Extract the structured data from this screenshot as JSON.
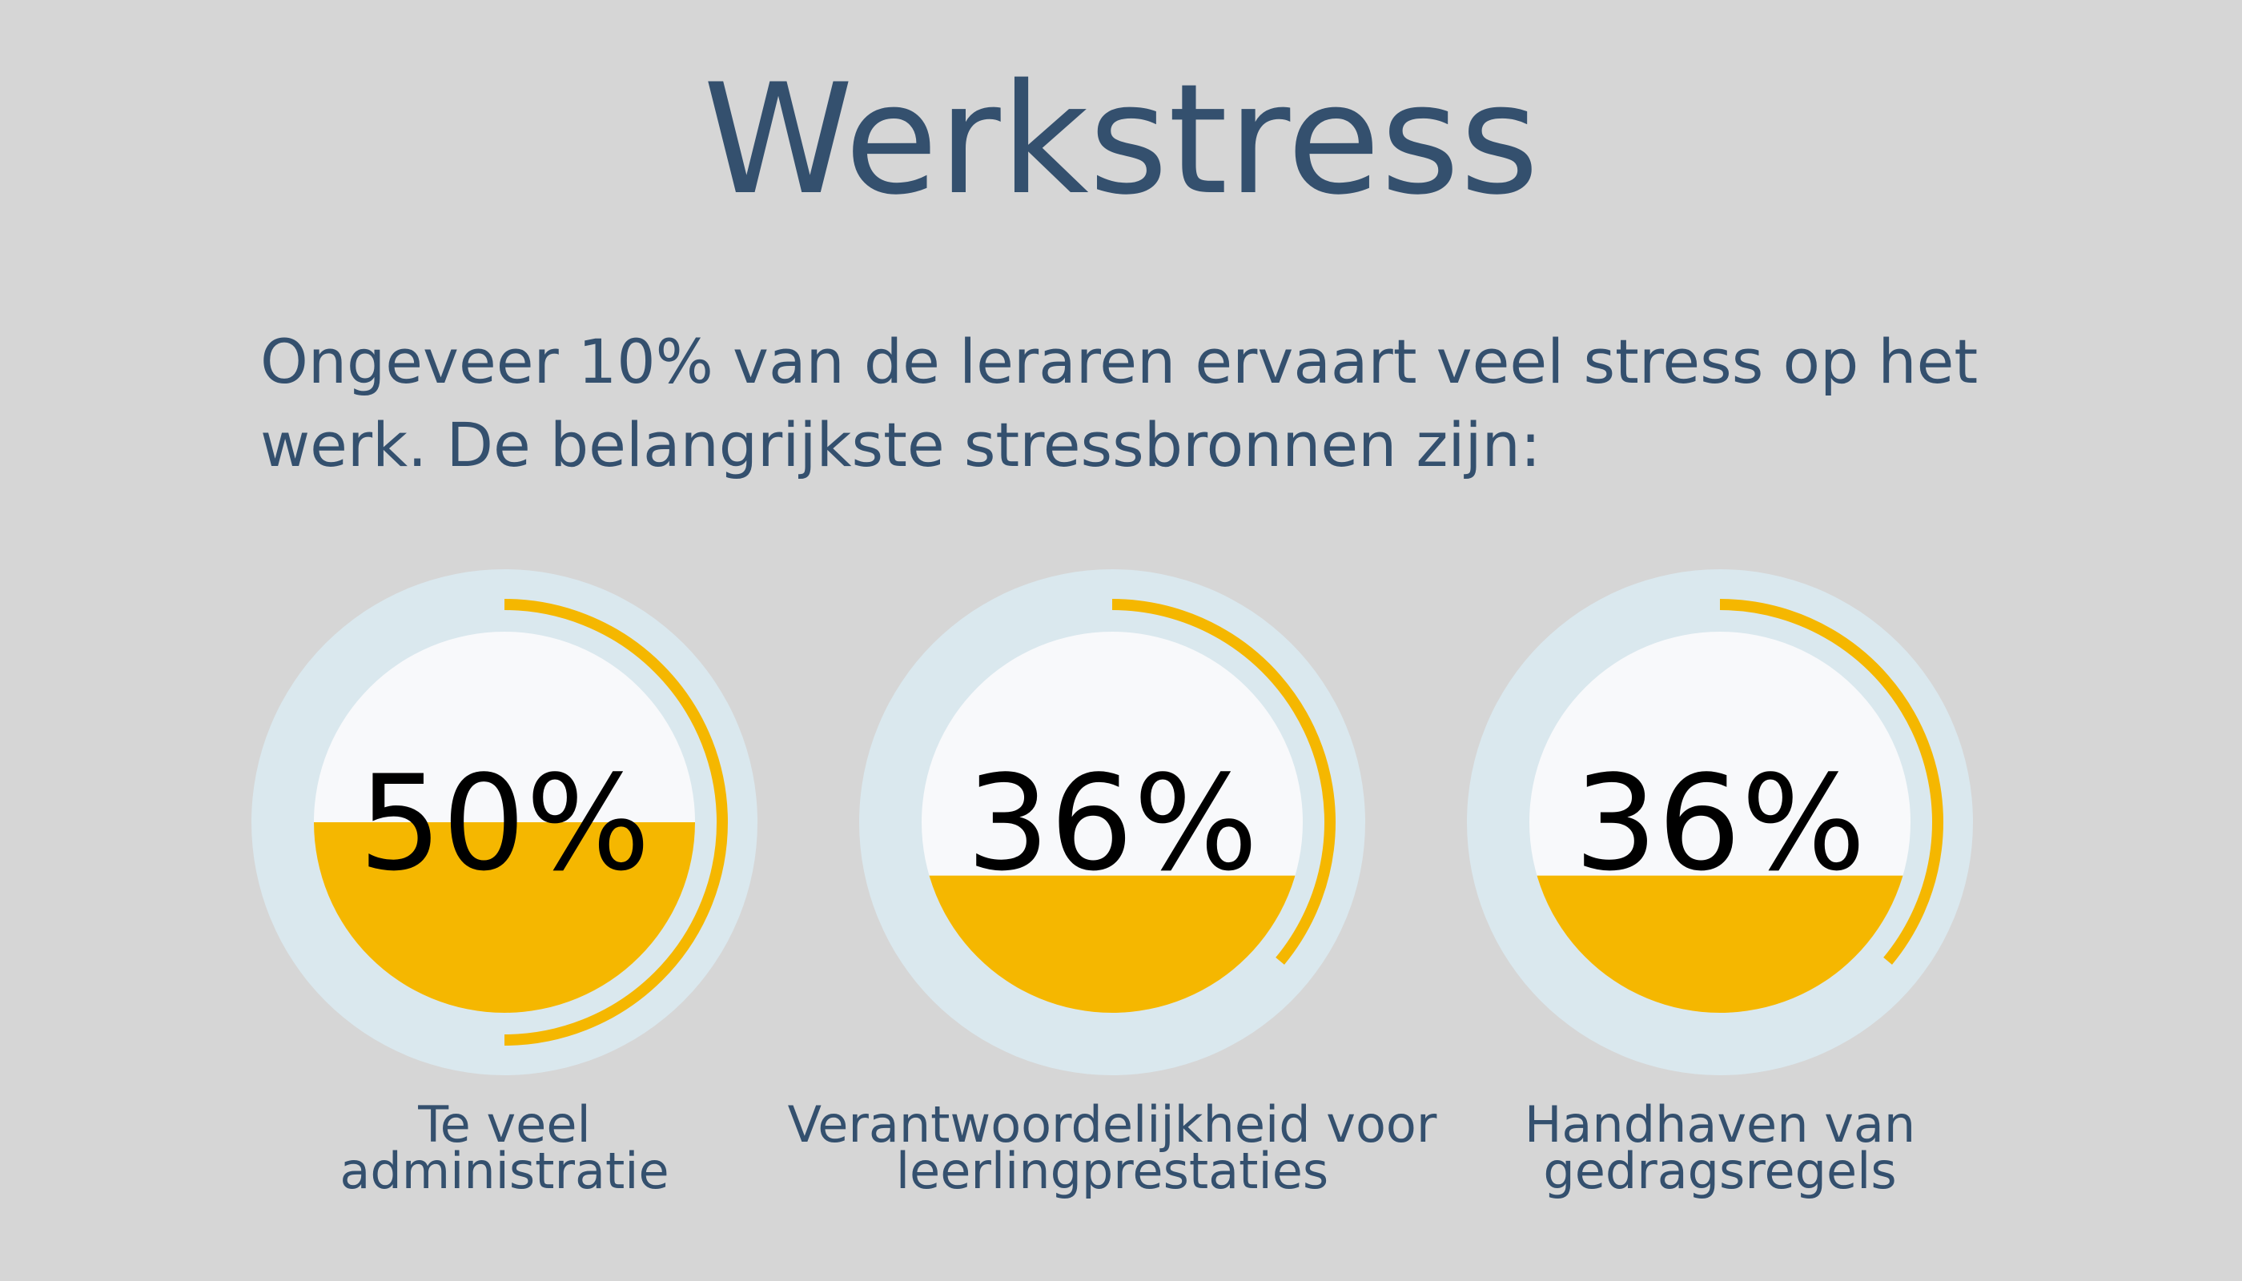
{
  "chart_data": {
    "type": "gauge",
    "title": "Werkstress",
    "subtitle": "Ongeveer 10% van de leraren ervaart veel stress op het werk. De belangrijkste stressbronnen zijn:",
    "categories": [
      "Te veel administratie",
      "Verantwoordelijkheid voor leerlingprestaties",
      "Handhaven van gedragsregels"
    ],
    "values": [
      50,
      36,
      36
    ],
    "value_labels": [
      "50%",
      "36%",
      "36%"
    ],
    "color": "#f5b700"
  }
}
